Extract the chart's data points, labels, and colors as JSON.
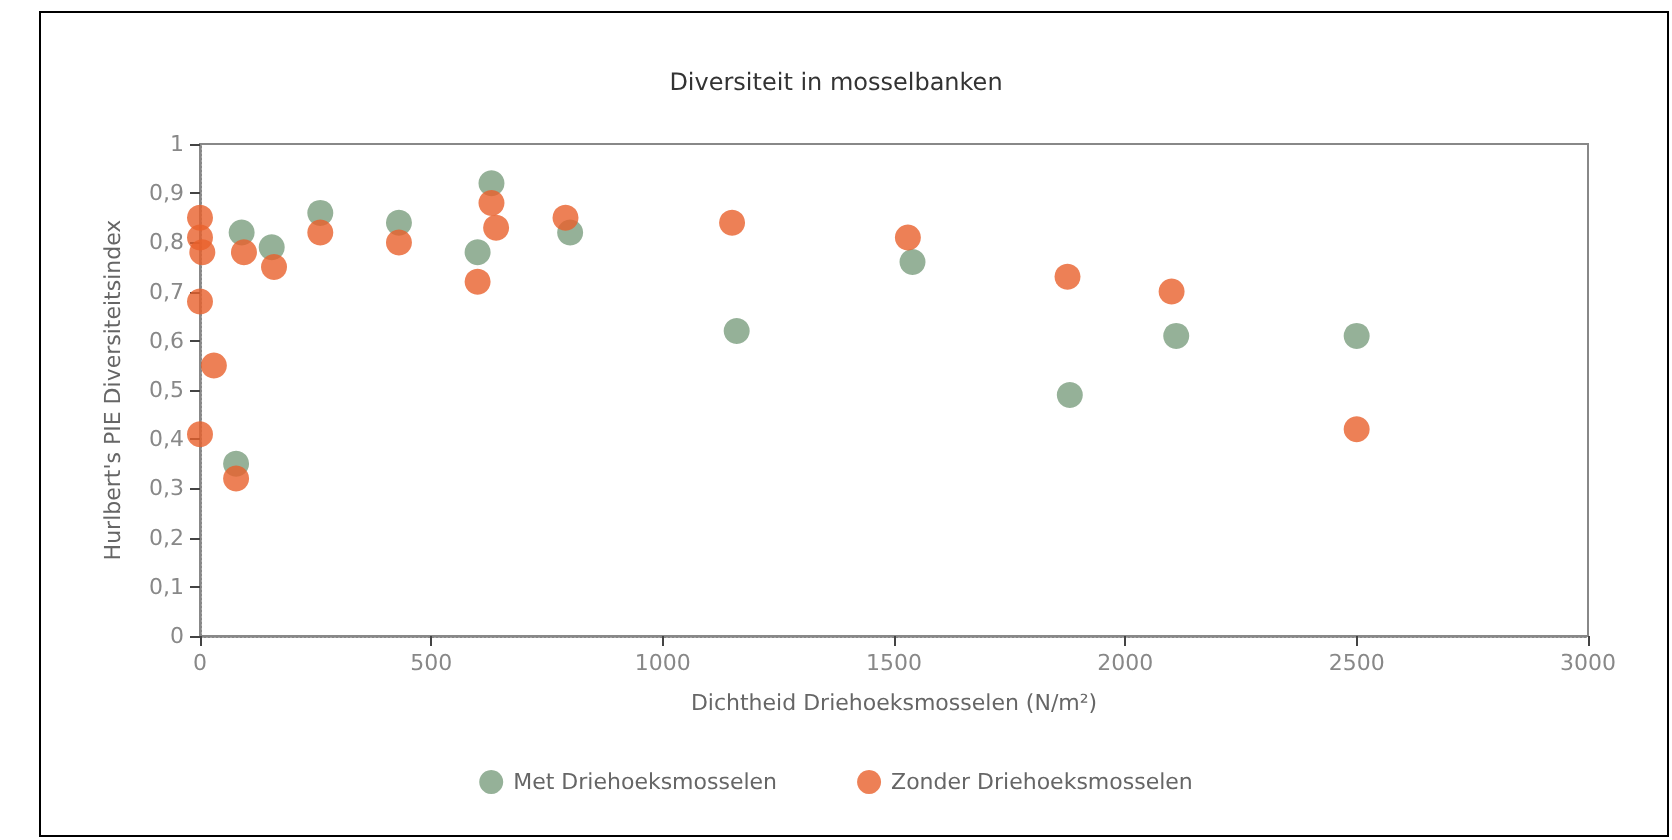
{
  "chart_data": {
    "type": "scatter",
    "title": "Diversiteit in mosselbanken",
    "xlabel": "Dichtheid Driehoeksmosselen (N/m²)",
    "ylabel": "Hurlbert's PIE Diversiteitsindex",
    "xlim": [
      0,
      3000
    ],
    "xticks": [
      0,
      500,
      1000,
      1500,
      2000,
      2500,
      3000
    ],
    "ylim": [
      0,
      1
    ],
    "yticks": [
      {
        "value": 0,
        "label": "0"
      },
      {
        "value": 0.1,
        "label": "0,1"
      },
      {
        "value": 0.2,
        "label": "0,2"
      },
      {
        "value": 0.3,
        "label": "0,3"
      },
      {
        "value": 0.4,
        "label": "0,4"
      },
      {
        "value": 0.5,
        "label": "0,5"
      },
      {
        "value": 0.6,
        "label": "0,6"
      },
      {
        "value": 0.7,
        "label": "0,7"
      },
      {
        "value": 0.8,
        "label": "0,8"
      },
      {
        "value": 0.9,
        "label": "0,9"
      },
      {
        "value": 1,
        "label": "1"
      }
    ],
    "grid": false,
    "legend": "bottom",
    "marker": "circle",
    "series": [
      {
        "name": "Met Driehoeksmosselen",
        "color": "#7a9e7e",
        "x": [
          90,
          155,
          260,
          430,
          600,
          630,
          800,
          1160,
          1540,
          1880,
          2110,
          2500,
          78
        ],
        "values": [
          0.82,
          0.79,
          0.86,
          0.84,
          0.78,
          0.92,
          0.82,
          0.62,
          0.76,
          0.49,
          0.61,
          0.61,
          0.35
        ]
      },
      {
        "name": "Zonder Driehoeksmosselen",
        "color": "#e8602c",
        "x": [
          0,
          0,
          5,
          0,
          0,
          30,
          95,
          160,
          260,
          430,
          600,
          630,
          640,
          790,
          1150,
          1530,
          1875,
          2100,
          2500,
          78
        ],
        "values": [
          0.85,
          0.81,
          0.78,
          0.68,
          0.41,
          0.55,
          0.78,
          0.75,
          0.82,
          0.8,
          0.72,
          0.88,
          0.83,
          0.85,
          0.84,
          0.81,
          0.73,
          0.7,
          0.42,
          0.32
        ]
      }
    ]
  }
}
